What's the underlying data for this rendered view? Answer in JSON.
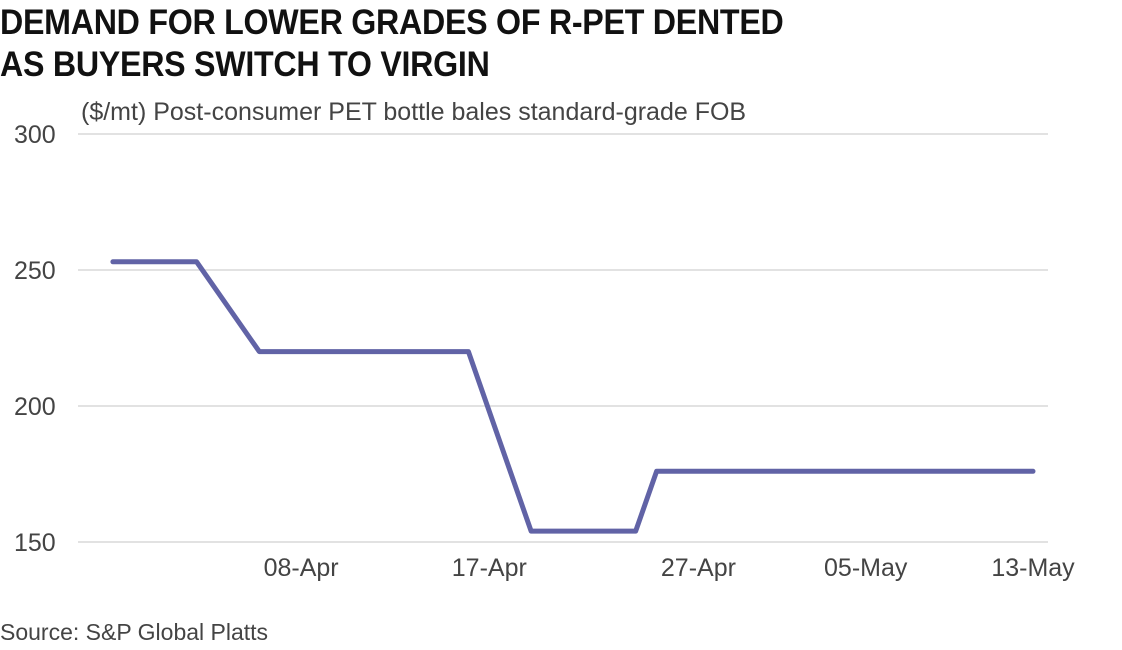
{
  "chart_data": {
    "type": "line",
    "title": "DEMAND FOR LOWER GRADES OF R-PET DENTED\nAS BUYERS SWITCH TO VIRGIN",
    "subtitle": "($/mt) Post-consumer PET bottle bales standard-grade FOB",
    "xlabel": "",
    "ylabel": "",
    "ylim": [
      150,
      300
    ],
    "yticks": [
      "150",
      "200",
      "250",
      "300"
    ],
    "xlim": [
      "2020-03-29",
      "2020-05-13"
    ],
    "xticks": [
      {
        "date": "2020-04-08",
        "label": "08-Apr"
      },
      {
        "date": "2020-04-17",
        "label": "17-Apr"
      },
      {
        "date": "2020-04-27",
        "label": "27-Apr"
      },
      {
        "date": "2020-05-05",
        "label": "05-May"
      },
      {
        "date": "2020-05-13",
        "label": "13-May"
      }
    ],
    "grid": true,
    "legend": "none",
    "line_color": "#6163a6",
    "grid_color": "#d9d9d9",
    "series": [
      {
        "points": [
          {
            "x": "2020-03-30",
            "y": 253
          },
          {
            "x": "2020-04-03",
            "y": 253
          },
          {
            "x": "2020-04-06",
            "y": 220
          },
          {
            "x": "2020-04-16",
            "y": 220
          },
          {
            "x": "2020-04-19",
            "y": 154
          },
          {
            "x": "2020-04-24",
            "y": 154
          },
          {
            "x": "2020-04-25",
            "y": 176
          },
          {
            "x": "2020-05-13",
            "y": 176
          }
        ]
      }
    ],
    "source": "Source: S&P Global Platts"
  }
}
